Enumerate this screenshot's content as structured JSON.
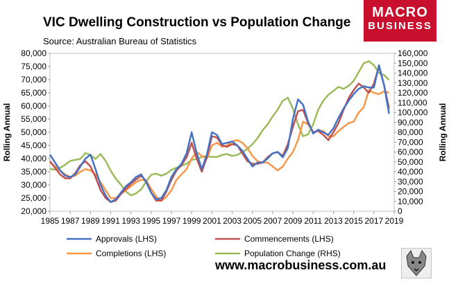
{
  "header": {
    "title": "VIC Dwelling Construction vs Population Change",
    "subtitle": "Source: Australian Bureau of Statistics"
  },
  "logo": {
    "line1": "MACRO",
    "line2": "BUSINESS",
    "color": "#c8102e"
  },
  "footer": {
    "url": "www.macrobusiness.com.au"
  },
  "chart_data": {
    "type": "line",
    "title": "VIC Dwelling Construction vs Population Change",
    "ylabel": "Rolling Annual",
    "y2label": "Rolling Annual",
    "ylim": [
      20000,
      80000
    ],
    "y2lim": [
      0,
      160000
    ],
    "xlim": [
      1985,
      2019
    ],
    "y_ticks": [
      "20,000",
      "25,000",
      "30,000",
      "35,000",
      "40,000",
      "45,000",
      "50,000",
      "55,000",
      "60,000",
      "65,000",
      "70,000",
      "75,000",
      "80,000"
    ],
    "y2_ticks": [
      "0",
      "10,000",
      "20,000",
      "30,000",
      "40,000",
      "50,000",
      "60,000",
      "70,000",
      "80,000",
      "90,000",
      "100,000",
      "110,000",
      "120,000",
      "130,000",
      "140,000",
      "150,000",
      "160,000"
    ],
    "x_ticks": [
      "1985",
      "1987",
      "1989",
      "1991",
      "1993",
      "1995",
      "1997",
      "1999",
      "2001",
      "2003",
      "2005",
      "2007",
      "2009",
      "2011",
      "2013",
      "2015",
      "2017",
      "2019"
    ],
    "grid": false,
    "legend": "bottom",
    "series": [
      {
        "name": "Approvals (LHS)",
        "axis": "left",
        "color": "#4472c4",
        "x": [
          1985,
          1985.5,
          1986,
          1986.5,
          1987,
          1987.5,
          1988,
          1988.5,
          1989,
          1989.5,
          1990,
          1990.5,
          1991,
          1991.5,
          1992,
          1992.5,
          1993,
          1993.5,
          1994,
          1994.5,
          1995,
          1995.5,
          1996,
          1996.5,
          1997,
          1997.5,
          1998,
          1998.5,
          1999,
          1999.5,
          2000,
          2000.5,
          2001,
          2001.5,
          2002,
          2002.5,
          2003,
          2003.5,
          2004,
          2004.5,
          2005,
          2005.5,
          2006,
          2006.5,
          2007,
          2007.5,
          2008,
          2008.5,
          2009,
          2009.5,
          2010,
          2010.5,
          2011,
          2011.5,
          2012,
          2012.5,
          2013,
          2013.5,
          2014,
          2014.5,
          2015,
          2015.5,
          2016,
          2016.5,
          2017,
          2017.5,
          2018,
          2018.5
        ],
        "values": [
          41500,
          38500,
          35500,
          33500,
          33000,
          34000,
          37000,
          40000,
          41500,
          36000,
          30000,
          26000,
          23500,
          24500,
          27000,
          29500,
          31000,
          33000,
          34000,
          31000,
          27000,
          24500,
          25000,
          28000,
          33000,
          36000,
          38000,
          42000,
          50000,
          42000,
          36000,
          41500,
          50000,
          49000,
          45500,
          46000,
          46500,
          45000,
          43000,
          40000,
          37000,
          38500,
          38500,
          40000,
          42000,
          42500,
          40500,
          44000,
          55000,
          62500,
          60500,
          54000,
          49500,
          51000,
          50000,
          49000,
          51500,
          55500,
          59000,
          62000,
          64500,
          66500,
          67500,
          67000,
          67000,
          75500,
          68000,
          57000
        ]
      },
      {
        "name": "Commencements (LHS)",
        "axis": "left",
        "color": "#c0504d",
        "x": [
          1985,
          1985.5,
          1986,
          1986.5,
          1987,
          1987.5,
          1988,
          1988.5,
          1989,
          1989.5,
          1990,
          1990.5,
          1991,
          1991.5,
          1992,
          1992.5,
          1993,
          1993.5,
          1994,
          1994.5,
          1995,
          1995.5,
          1996,
          1996.5,
          1997,
          1997.5,
          1998,
          1998.5,
          1999,
          1999.5,
          2000,
          2000.5,
          2001,
          2001.5,
          2002,
          2002.5,
          2003,
          2003.5,
          2004,
          2004.5,
          2005,
          2005.5,
          2006,
          2006.5,
          2007,
          2007.5,
          2008,
          2008.5,
          2009,
          2009.5,
          2010,
          2010.5,
          2011,
          2011.5,
          2012,
          2012.5,
          2013,
          2013.5,
          2014,
          2014.5,
          2015,
          2015.5,
          2016,
          2016.5,
          2017,
          2017.5,
          2018,
          2018.5
        ],
        "values": [
          39000,
          36500,
          34000,
          32500,
          32500,
          34500,
          37500,
          39000,
          37000,
          33000,
          28000,
          25000,
          23500,
          24000,
          26500,
          28500,
          30500,
          32000,
          33500,
          31500,
          27000,
          24000,
          24000,
          27500,
          32000,
          35500,
          37500,
          40500,
          46000,
          40000,
          35000,
          40500,
          48500,
          48000,
          45000,
          44500,
          45500,
          45000,
          42000,
          39000,
          38000,
          38000,
          38500,
          40500,
          42000,
          42500,
          41000,
          45500,
          52000,
          58000,
          58500,
          53500,
          50000,
          50500,
          49000,
          47000,
          50000,
          53500,
          58500,
          63000,
          66000,
          68500,
          67000,
          65000,
          68500,
          75000,
          68000,
          59000
        ]
      },
      {
        "name": "Completions (LHS)",
        "axis": "left",
        "color": "#f79646",
        "x": [
          1985,
          1985.5,
          1986,
          1986.5,
          1987,
          1987.5,
          1988,
          1988.5,
          1989,
          1989.5,
          1990,
          1990.5,
          1991,
          1991.5,
          1992,
          1992.5,
          1993,
          1993.5,
          1994,
          1994.5,
          1995,
          1995.5,
          1996,
          1996.5,
          1997,
          1997.5,
          1998,
          1998.5,
          1999,
          1999.5,
          2000,
          2000.5,
          2001,
          2001.5,
          2002,
          2002.5,
          2003,
          2003.5,
          2004,
          2004.5,
          2005,
          2005.5,
          2006,
          2006.5,
          2007,
          2007.5,
          2008,
          2008.5,
          2009,
          2009.5,
          2010,
          2010.5,
          2011,
          2011.5,
          2012,
          2012.5,
          2013,
          2013.5,
          2014,
          2014.5,
          2015,
          2015.5,
          2016,
          2016.5,
          2017,
          2017.5,
          2018,
          2018.5
        ],
        "values": [
          38500,
          37000,
          35500,
          34000,
          33000,
          33500,
          35000,
          36000,
          35500,
          34000,
          31000,
          28000,
          25000,
          25000,
          26500,
          28000,
          29500,
          31000,
          32000,
          31500,
          28500,
          25500,
          24000,
          25500,
          28000,
          32000,
          34000,
          36000,
          40000,
          42500,
          41000,
          40000,
          45000,
          46000,
          44500,
          45000,
          46500,
          47000,
          46000,
          44000,
          41000,
          39000,
          38500,
          38500,
          37000,
          35500,
          37000,
          40000,
          42500,
          47000,
          54000,
          53000,
          50000,
          50500,
          50500,
          48500,
          48500,
          50500,
          52000,
          53500,
          54000,
          57500,
          59500,
          66000,
          65000,
          64500,
          65500,
          65000
        ]
      },
      {
        "name": "Population Change (RHS)",
        "axis": "right",
        "color": "#9bbb59",
        "x": [
          1985,
          1985.5,
          1986,
          1986.5,
          1987,
          1987.5,
          1988,
          1988.5,
          1989,
          1989.5,
          1990,
          1990.5,
          1991,
          1991.5,
          1992,
          1992.5,
          1993,
          1993.5,
          1994,
          1994.5,
          1995,
          1995.5,
          1996,
          1996.5,
          1997,
          1997.5,
          1998,
          1998.5,
          1999,
          1999.5,
          2000,
          2000.5,
          2001,
          2001.5,
          2002,
          2002.5,
          2003,
          2003.5,
          2004,
          2004.5,
          2005,
          2005.5,
          2006,
          2006.5,
          2007,
          2007.5,
          2008,
          2008.5,
          2009,
          2009.5,
          2010,
          2010.5,
          2011,
          2011.5,
          2012,
          2012.5,
          2013,
          2013.5,
          2014,
          2014.5,
          2015,
          2015.5,
          2016,
          2016.5,
          2017,
          2017.5,
          2018,
          2018.5
        ],
        "values": [
          43000,
          42000,
          44000,
          47000,
          51000,
          52000,
          53000,
          59000,
          57000,
          53000,
          58000,
          51000,
          41000,
          33000,
          27000,
          20000,
          16000,
          18000,
          22000,
          30000,
          37000,
          38000,
          36000,
          38000,
          42000,
          44000,
          46000,
          48000,
          52000,
          53000,
          55000,
          56000,
          55000,
          55000,
          57000,
          58000,
          56000,
          57000,
          60000,
          63000,
          68000,
          74000,
          82000,
          88000,
          96000,
          103000,
          112000,
          115000,
          104000,
          88000,
          76000,
          78000,
          88000,
          103000,
          112000,
          118000,
          122000,
          126000,
          124000,
          127000,
          132000,
          141000,
          150000,
          152000,
          148000,
          140000,
          138000,
          133000
        ]
      }
    ]
  }
}
